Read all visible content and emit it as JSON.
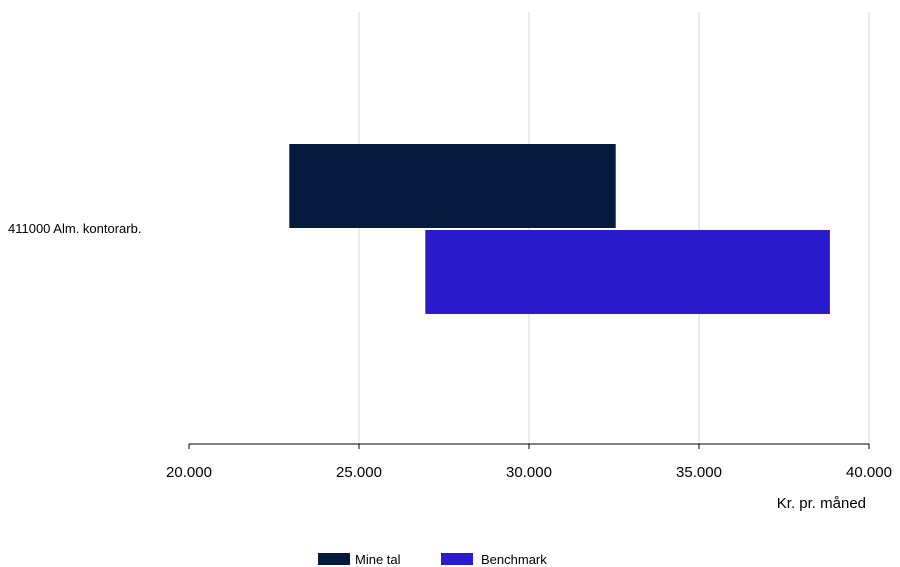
{
  "chart_data": {
    "type": "bar",
    "orientation": "horizontal",
    "floating": true,
    "categories": [
      "411000 Alm. kontorarb."
    ],
    "series": [
      {
        "name": "Mine tal",
        "color": "#041b3d",
        "ranges": [
          [
            22950,
            32550
          ]
        ]
      },
      {
        "name": "Benchmark",
        "color": "#2a1bcc",
        "ranges": [
          [
            26950,
            38850
          ]
        ]
      }
    ],
    "xlim": [
      20000,
      40000
    ],
    "xticks": [
      20000,
      25000,
      30000,
      35000,
      40000
    ],
    "xtick_labels": [
      "20.000",
      "25.000",
      "30.000",
      "35.000",
      "40.000"
    ],
    "xlabel": "Kr. pr. måned",
    "grid": "vertical",
    "legend_position": "bottom"
  }
}
